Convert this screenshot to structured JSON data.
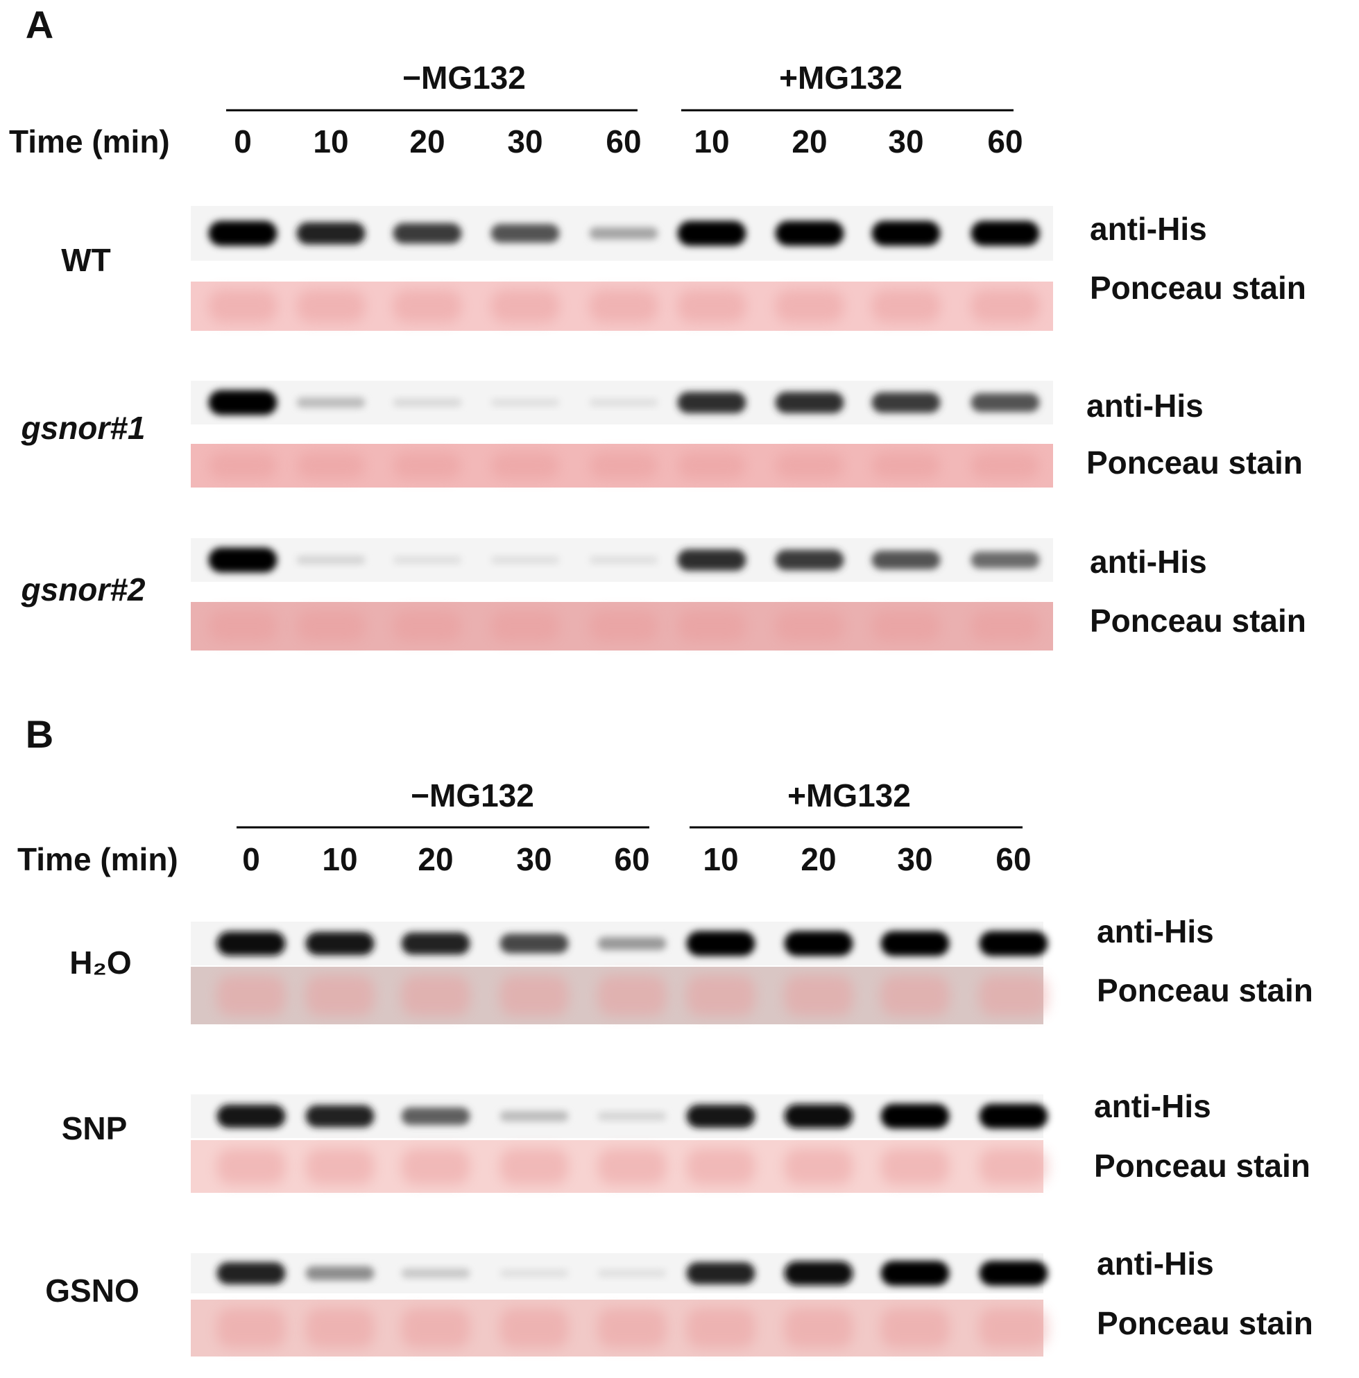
{
  "panels": [
    {
      "label": "A",
      "treatments": [
        "−MG132",
        "+MG132"
      ],
      "time_label": "Time (min)",
      "times": [
        "0",
        "10",
        "20",
        "30",
        "60",
        "10",
        "20",
        "30",
        "60"
      ],
      "rows": [
        {
          "name": "WT",
          "italic": false,
          "blots": [
            "anti-His",
            "Ponceau stain"
          ]
        },
        {
          "name": "gsnor#1",
          "italic": true,
          "blots": [
            "anti-His",
            "Ponceau stain"
          ]
        },
        {
          "name": "gsnor#2",
          "italic": true,
          "blots": [
            "anti-His",
            "Ponceau stain"
          ]
        }
      ]
    },
    {
      "label": "B",
      "treatments": [
        "−MG132",
        "+MG132"
      ],
      "time_label": "Time (min)",
      "times": [
        "0",
        "10",
        "20",
        "30",
        "60",
        "10",
        "20",
        "30",
        "60"
      ],
      "rows": [
        {
          "name": "H₂O",
          "italic": false,
          "blots": [
            "anti-His",
            "Ponceau stain"
          ]
        },
        {
          "name": "SNP",
          "italic": false,
          "blots": [
            "anti-His",
            "Ponceau stain"
          ]
        },
        {
          "name": "GSNO",
          "italic": false,
          "blots": [
            "anti-His",
            "Ponceau stain"
          ]
        }
      ]
    }
  ]
}
